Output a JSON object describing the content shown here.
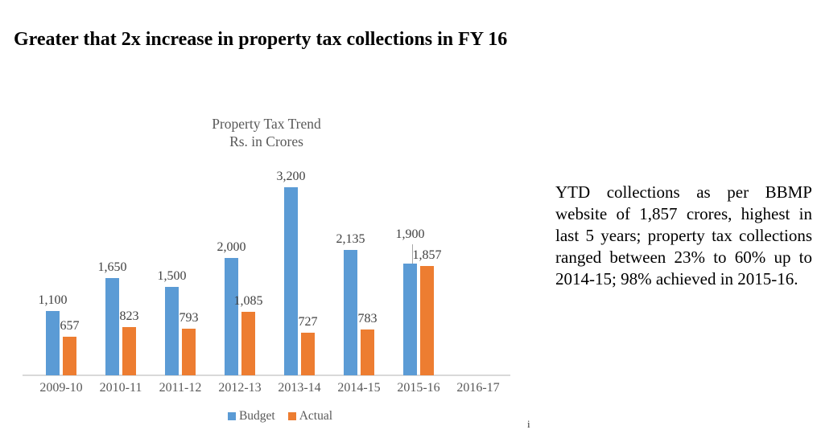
{
  "page": {
    "heading": "Greater that 2x increase in property tax collections in FY 16",
    "footnote_marker": "i"
  },
  "annotation": {
    "text": "YTD collections as per BBMP website of 1,857 crores, highest in last 5 years; property tax collections ranged between 23% to 60% up to 2014-15; 98% achieved in 2015-16."
  },
  "chart_data": {
    "type": "bar",
    "title": "Property Tax Trend",
    "subtitle": "Rs. in Crores",
    "categories": [
      "2009-10",
      "2010-11",
      "2011-12",
      "2012-13",
      "2013-14",
      "2014-15",
      "2015-16",
      "2016-17"
    ],
    "series": [
      {
        "name": "Budget",
        "color": "#5B9BD5",
        "values": [
          1100,
          1650,
          1500,
          2000,
          3200,
          2135,
          1900,
          null
        ]
      },
      {
        "name": "Actual",
        "color": "#ED7D31",
        "values": [
          657,
          823,
          793,
          1085,
          727,
          783,
          1857,
          null
        ]
      }
    ],
    "ylim": [
      0,
      3200
    ],
    "grid": false,
    "data_labels": true,
    "legend_position": "bottom",
    "axis_color": "#D9D9D9",
    "category_label_color": "#595959",
    "data_label_color": "#404040"
  }
}
